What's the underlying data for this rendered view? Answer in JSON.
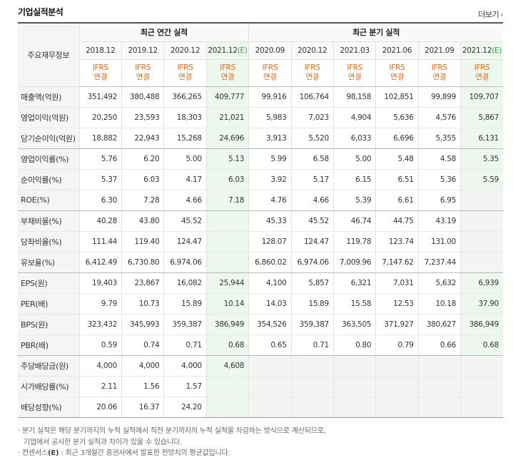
{
  "header": {
    "title": "기업실적분석",
    "more_label": "더보기",
    "more_icon": "chevron-right-icon"
  },
  "table": {
    "label_header": "주요재무정보",
    "annual_group": "최근 연간 실적",
    "quarter_group": "최근 분기 실적",
    "periods": [
      "2018.12",
      "2019.12",
      "2020.12",
      "2021.12",
      "2020.09",
      "2020.12",
      "2021.03",
      "2021.06",
      "2021.09",
      "2021.12"
    ],
    "est_marks": [
      "",
      "",
      "",
      "(E)",
      "",
      "",
      "",
      "",
      "",
      "(E)"
    ],
    "standard_top": "IFRS",
    "standard_bottom": "연결",
    "rows": [
      {
        "label": "매출액(억원)",
        "values": [
          "351,492",
          "380,488",
          "366,265",
          "409,777",
          "99,916",
          "106,764",
          "98,158",
          "102,851",
          "99,899",
          "109,707"
        ]
      },
      {
        "label": "영업이익(억원)",
        "values": [
          "20,250",
          "23,593",
          "18,303",
          "21,021",
          "5,983",
          "7,023",
          "4,904",
          "5,636",
          "4,576",
          "5,867"
        ]
      },
      {
        "label": "당기순이익(억원)",
        "values": [
          "18,882",
          "22,943",
          "15,268",
          "24,696",
          "3,913",
          "5,520",
          "6,033",
          "6,696",
          "5,355",
          "6,131"
        ]
      },
      {
        "label": "영업이익률(%)",
        "values": [
          "5.76",
          "6.20",
          "5.00",
          "5.13",
          "5.99",
          "6.58",
          "5.00",
          "5.48",
          "4.58",
          "5.35"
        ]
      },
      {
        "label": "순이익률(%)",
        "values": [
          "5.37",
          "6.03",
          "4.17",
          "6.03",
          "3.92",
          "5.17",
          "6.15",
          "6.51",
          "5.36",
          "5.59"
        ]
      },
      {
        "label": "ROE(%)",
        "values": [
          "6.30",
          "7.28",
          "4.66",
          "7.18",
          "4.76",
          "4.66",
          "5.39",
          "6.61",
          "6.95",
          ""
        ]
      },
      {
        "label": "부채비율(%)",
        "values": [
          "40.28",
          "43.80",
          "45.52",
          "",
          "45.33",
          "45.52",
          "46.74",
          "44.75",
          "43.19",
          ""
        ]
      },
      {
        "label": "당좌비율(%)",
        "values": [
          "111.44",
          "119.40",
          "124.47",
          "",
          "128.07",
          "124.47",
          "119.78",
          "123.74",
          "131.00",
          ""
        ]
      },
      {
        "label": "유보율(%)",
        "values": [
          "6,412.49",
          "6,730.80",
          "6,974.06",
          "",
          "6,860.02",
          "6,974.06",
          "7,009.96",
          "7,147.62",
          "7,237.44",
          ""
        ]
      },
      {
        "label": "EPS(원)",
        "values": [
          "19,403",
          "23,867",
          "16,082",
          "25,944",
          "4,100",
          "5,857",
          "6,321",
          "7,031",
          "5,632",
          "6,939"
        ]
      },
      {
        "label": "PER(배)",
        "values": [
          "9.79",
          "10.73",
          "15.89",
          "10.14",
          "14.03",
          "15.89",
          "15.58",
          "12.53",
          "10.18",
          "37.90"
        ]
      },
      {
        "label": "BPS(원)",
        "values": [
          "323,432",
          "345,993",
          "359,387",
          "386,949",
          "354,526",
          "359,387",
          "363,505",
          "371,927",
          "380,627",
          "386,949"
        ]
      },
      {
        "label": "PBR(배)",
        "values": [
          "0.59",
          "0.74",
          "0.71",
          "0.68",
          "0.65",
          "0.71",
          "0.80",
          "0.79",
          "0.66",
          "0.68"
        ]
      },
      {
        "label": "주당배당금(원)",
        "values": [
          "4,000",
          "4,000",
          "4,000",
          "4,608",
          "",
          "",
          "",
          "",
          "",
          ""
        ]
      },
      {
        "label": "시가배당률(%)",
        "values": [
          "2.11",
          "1.56",
          "1.57",
          "",
          "",
          "",
          "",
          "",
          "",
          ""
        ]
      },
      {
        "label": "배당성향(%)",
        "values": [
          "20.06",
          "16.37",
          "24.20",
          "",
          "",
          "",
          "",
          "",
          "",
          ""
        ]
      }
    ]
  },
  "notes": {
    "line1": "분기 실적은 해당 분기까지의 누적 실적에서 직전 분기까지의 누적 실적을 차감하는 방식으로 계산되므로,",
    "line2": "기업에서 공시한 분기 실적과 차이가 있을 수 있습니다.",
    "line3_prefix": "컨센서스",
    "line3_mark": "(E)",
    "line3_rest": " : 최근 3개월간 증권사에서 발표한 전망치의 평균값입니다."
  }
}
